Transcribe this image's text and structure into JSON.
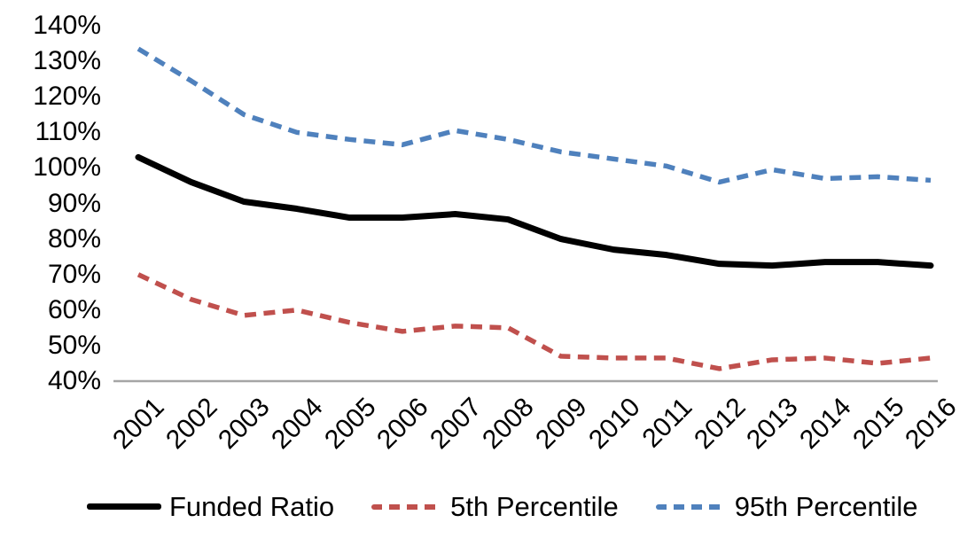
{
  "chart_data": {
    "type": "line",
    "x": [
      "2001",
      "2002",
      "2003",
      "2004",
      "2005",
      "2006",
      "2007",
      "2008",
      "2009",
      "2010",
      "2011",
      "2012",
      "2013",
      "2014",
      "2015",
      "2016"
    ],
    "series": [
      {
        "name": "Funded Ratio",
        "color": "#000000",
        "style": "solid",
        "values": [
          103,
          96,
          90.5,
          88.5,
          86,
          86,
          87,
          85.5,
          80,
          77,
          75.5,
          73,
          72.5,
          73.5,
          73.5,
          72.5
        ]
      },
      {
        "name": "5th Percentile",
        "color": "#C0504D",
        "style": "dashed",
        "values": [
          70,
          63,
          58.5,
          60,
          56.5,
          54,
          55.5,
          55,
          47,
          46.5,
          46.5,
          43.5,
          46,
          46.5,
          45,
          46.5
        ]
      },
      {
        "name": "95th Percentile",
        "color": "#4F81BD",
        "style": "dashed",
        "values": [
          133.5,
          124.5,
          115,
          110,
          108,
          106.5,
          110.5,
          108,
          104.5,
          102.5,
          100.5,
          96,
          99.5,
          97,
          97.5,
          96.5
        ]
      }
    ],
    "ylim": [
      40,
      140
    ],
    "ytick_step": 10,
    "ytick_suffix": "%",
    "grid": false,
    "legend_position": "bottom",
    "axis_color": "#A6A6A6",
    "background": "#FFFFFF"
  }
}
